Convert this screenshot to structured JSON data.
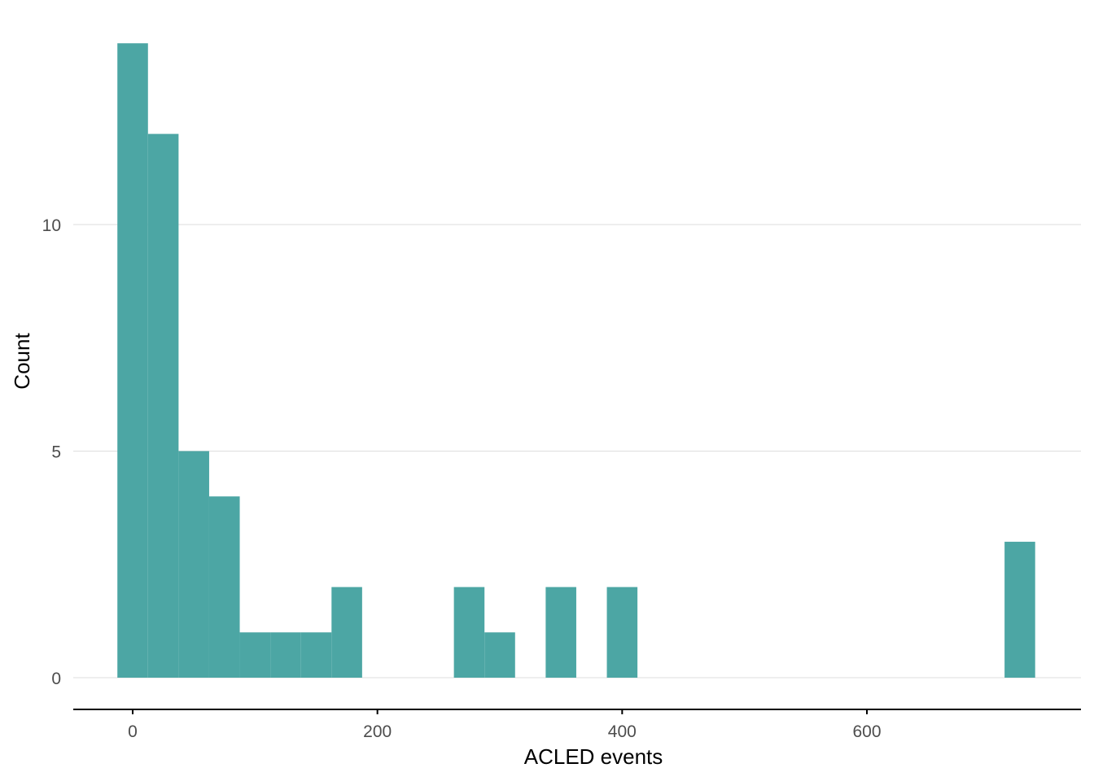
{
  "chart_data": {
    "type": "bar",
    "subtype": "histogram",
    "xlabel": "ACLED events",
    "ylabel": "Count",
    "bin_width": 25,
    "bins": [
      {
        "x_start": -12.5,
        "x_end": 12.5,
        "count": 14
      },
      {
        "x_start": 12.5,
        "x_end": 37.5,
        "count": 12
      },
      {
        "x_start": 37.5,
        "x_end": 62.5,
        "count": 5
      },
      {
        "x_start": 62.5,
        "x_end": 87.5,
        "count": 4
      },
      {
        "x_start": 87.5,
        "x_end": 112.5,
        "count": 1
      },
      {
        "x_start": 112.5,
        "x_end": 137.5,
        "count": 1
      },
      {
        "x_start": 137.5,
        "x_end": 162.5,
        "count": 1
      },
      {
        "x_start": 162.5,
        "x_end": 187.5,
        "count": 2
      },
      {
        "x_start": 262.5,
        "x_end": 287.5,
        "count": 2
      },
      {
        "x_start": 287.5,
        "x_end": 312.5,
        "count": 1
      },
      {
        "x_start": 337.5,
        "x_end": 362.5,
        "count": 2
      },
      {
        "x_start": 387.5,
        "x_end": 412.5,
        "count": 2
      },
      {
        "x_start": 712.5,
        "x_end": 737.5,
        "count": 3
      }
    ],
    "x_ticks": [
      "0",
      "200",
      "400",
      "600"
    ],
    "x_tick_values": [
      0,
      200,
      400,
      600
    ],
    "y_ticks": [
      "0",
      "5",
      "10"
    ],
    "y_tick_values": [
      0,
      5,
      10
    ],
    "xlim": [
      -50,
      776
    ],
    "ylim": [
      0,
      14
    ],
    "grid": "horizontal-major",
    "colors": {
      "bar_fill": "#4ca6a4",
      "grid": "#dedede",
      "axis": "#000000",
      "tick_text": "#4d4d4d"
    }
  }
}
